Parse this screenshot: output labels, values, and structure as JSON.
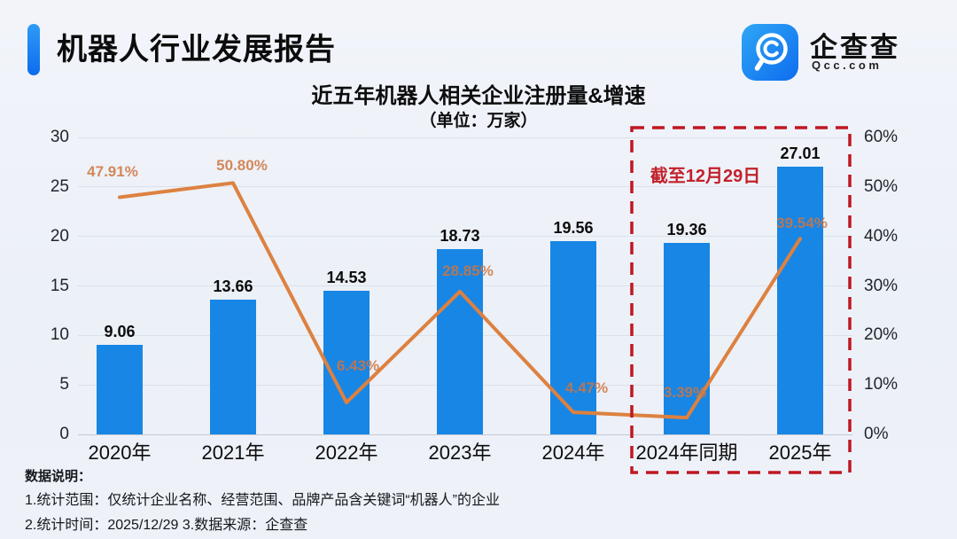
{
  "header": {
    "title": "机器人行业发展报告",
    "logo": {
      "name": "企查查",
      "domain": "Qcc.com"
    }
  },
  "chart": {
    "title": "近五年机器人相关企业注册量&增速",
    "subtitle": "（单位：万家）"
  },
  "chart_data": {
    "type": "bar",
    "categories": [
      "2020年",
      "2021年",
      "2022年",
      "2023年",
      "2024年",
      "2024年同期",
      "2025年"
    ],
    "series": [
      {
        "name": "注册量",
        "type": "bar",
        "unit": "万家",
        "values": [
          9.06,
          13.66,
          14.53,
          18.73,
          19.56,
          19.36,
          27.01
        ],
        "labels": [
          "9.06",
          "13.66",
          "14.53",
          "18.73",
          "19.56",
          "19.36",
          "27.01"
        ],
        "color": "#1886e4"
      },
      {
        "name": "增速",
        "type": "line",
        "unit": "%",
        "values": [
          47.91,
          50.8,
          6.43,
          28.85,
          4.47,
          3.39,
          39.54
        ],
        "labels": [
          "47.91%",
          "50.80%",
          "6.43%",
          "28.85%",
          "4.47%",
          "3.39%",
          "39.54%"
        ],
        "color": "#dd8140"
      }
    ],
    "left_axis": {
      "ticks": [
        "0",
        "5",
        "10",
        "15",
        "20",
        "25",
        "30"
      ],
      "tick_values": [
        0,
        5,
        10,
        15,
        20,
        25,
        30
      ],
      "max": 30
    },
    "right_axis": {
      "ticks": [
        "0%",
        "10%",
        "20%",
        "30%",
        "40%",
        "50%",
        "60%"
      ],
      "max": 60
    },
    "grid": "horizontal",
    "legend": "none",
    "highlight": {
      "categories": [
        "2024年同期",
        "2025年"
      ],
      "label": "截至12月29日",
      "color": "#bf1722"
    }
  },
  "footer": {
    "heading": "数据说明：",
    "line1": "1.统计范围：仅统计企业名称、经营范围、品牌产品含关键词“机器人”的企业",
    "line2": "2.统计时间：2025/12/29  3.数据来源：企查查"
  }
}
